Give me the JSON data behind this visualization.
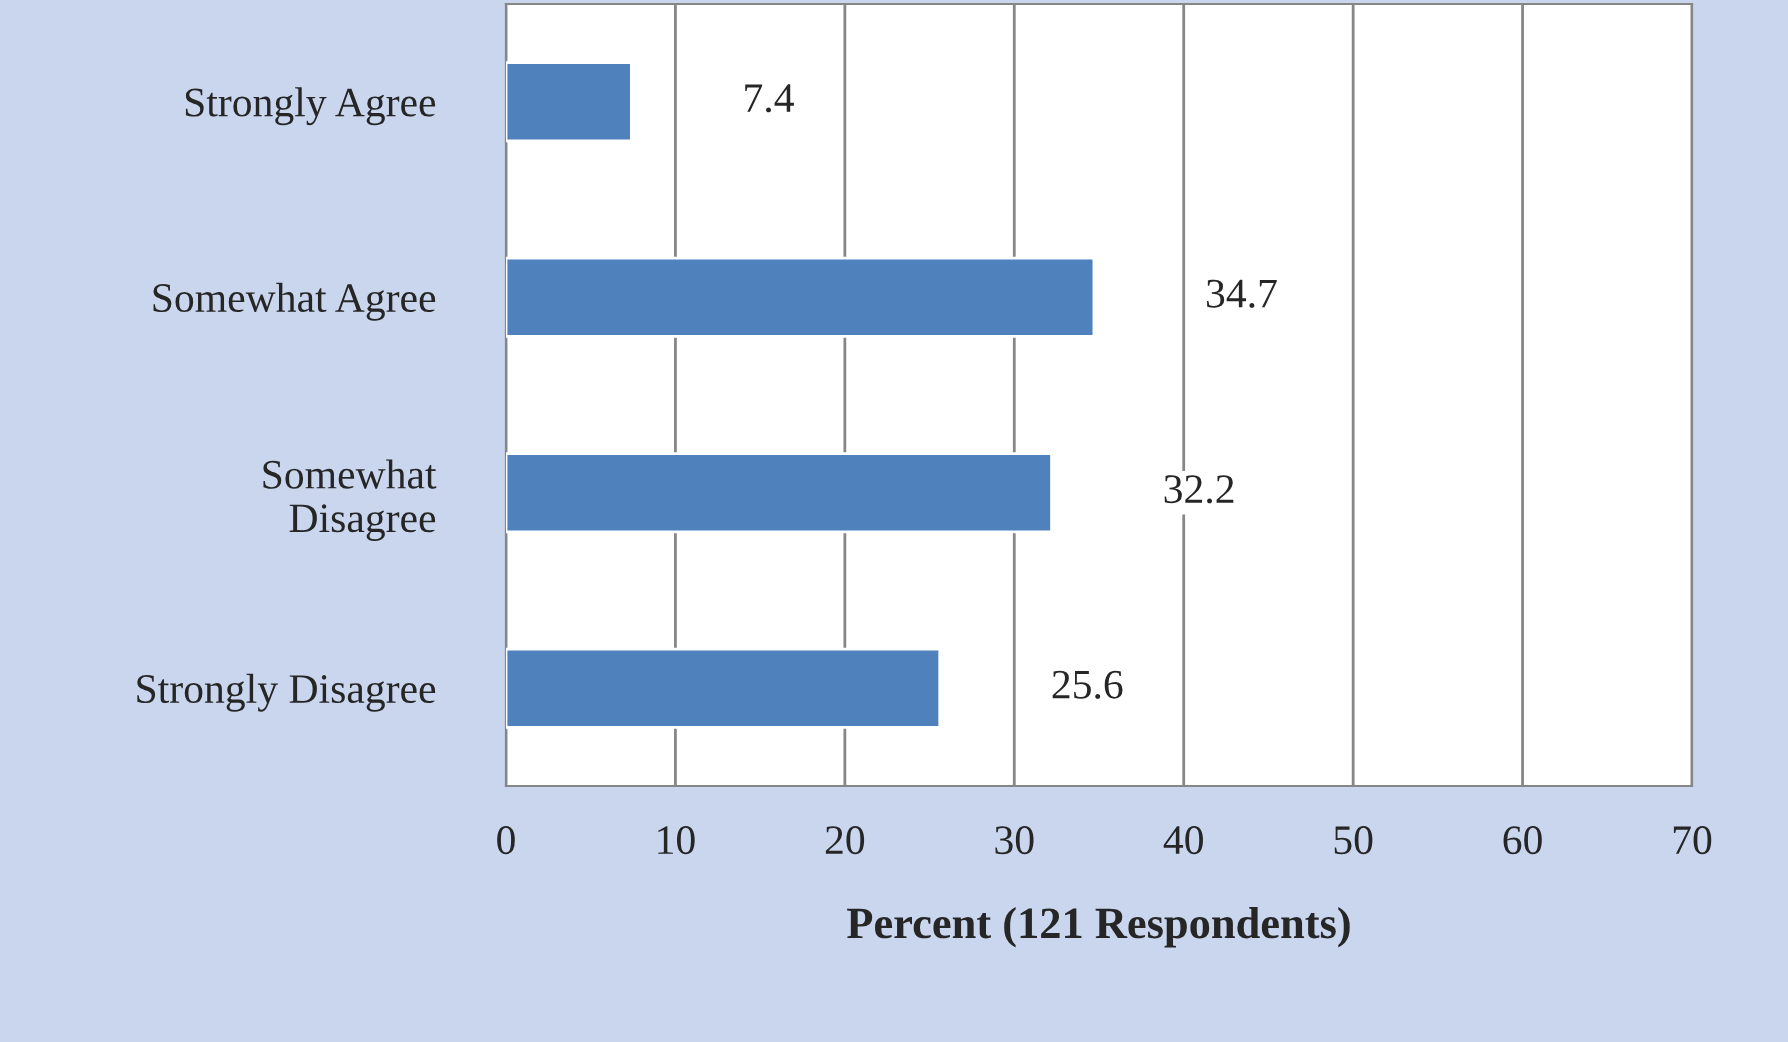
{
  "chart_data": {
    "type": "bar",
    "orientation": "horizontal",
    "xlabel": "Percent (121 Respondents)",
    "categories": [
      "Strongly Agree",
      "Somewhat Agree",
      "Somewhat\nDisagree",
      "Strongly Disagree"
    ],
    "values": [
      7.4,
      34.7,
      32.2,
      25.6
    ],
    "color": "#4f81bd",
    "xlim": [
      0,
      70
    ],
    "xticks": [
      0,
      10,
      20,
      30,
      40,
      50,
      60,
      70
    ],
    "grid": "x",
    "data_labels": true
  }
}
